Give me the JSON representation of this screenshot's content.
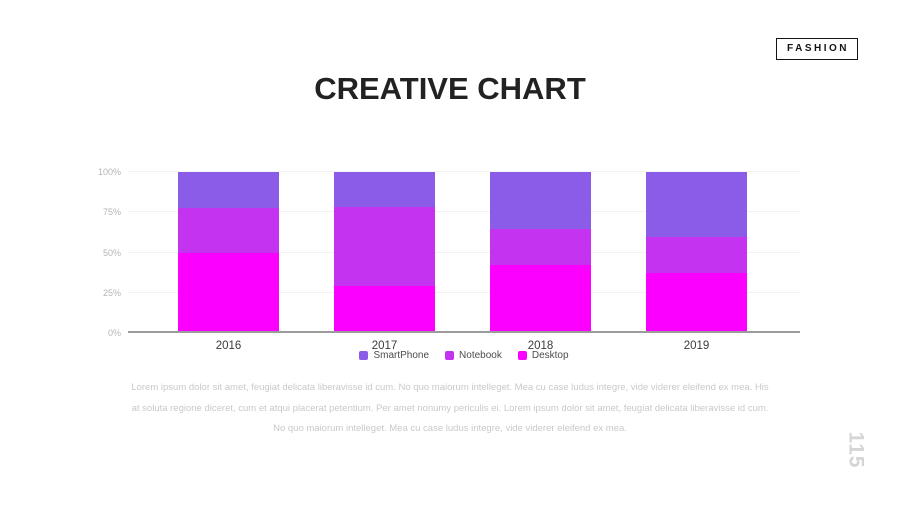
{
  "badge": {
    "label": "FASHION"
  },
  "title": "CREATIVE CHART",
  "chart_data": {
    "type": "bar",
    "subtype": "stacked-100-percent",
    "categories": [
      "2016",
      "2017",
      "2018",
      "2019"
    ],
    "series": [
      {
        "name": "SmartPhone",
        "color": "#8B5CE8",
        "values": [
          22.5,
          21.5,
          35.5,
          40.5
        ]
      },
      {
        "name": "Notebook",
        "color": "#C433F0",
        "values": [
          28.0,
          49.5,
          22.0,
          22.5
        ]
      },
      {
        "name": "Desktop",
        "color": "#FB00FE",
        "values": [
          49.5,
          29.0,
          42.5,
          37.0
        ]
      }
    ],
    "stack_order_bottom_to_top": [
      "Desktop",
      "Notebook",
      "SmartPhone"
    ],
    "yticks": [
      "0%",
      "25%",
      "50%",
      "75%",
      "100%"
    ],
    "ylim": [
      0,
      100
    ],
    "grid": true,
    "legend_position": "bottom",
    "axis_line_color": "#9b9b9b",
    "gridline_color": "#f2f2f2"
  },
  "body_text": "Lorem ipsum dolor sit amet, feugiat delicata liberavisse id cum. No quo maiorum intelleget. Mea cu case ludus integre, vide viderer eleifend ex mea. His at soluta regione diceret, cum et atqui placerat petentium. Per amet nonumy periculis ei. Lorem ipsum dolor sit amet, feugiat delicata liberavisse id cum. No quo maiorum intelleget. Mea cu case ludus integre, vide viderer eleifend ex mea.",
  "page_number": "115"
}
